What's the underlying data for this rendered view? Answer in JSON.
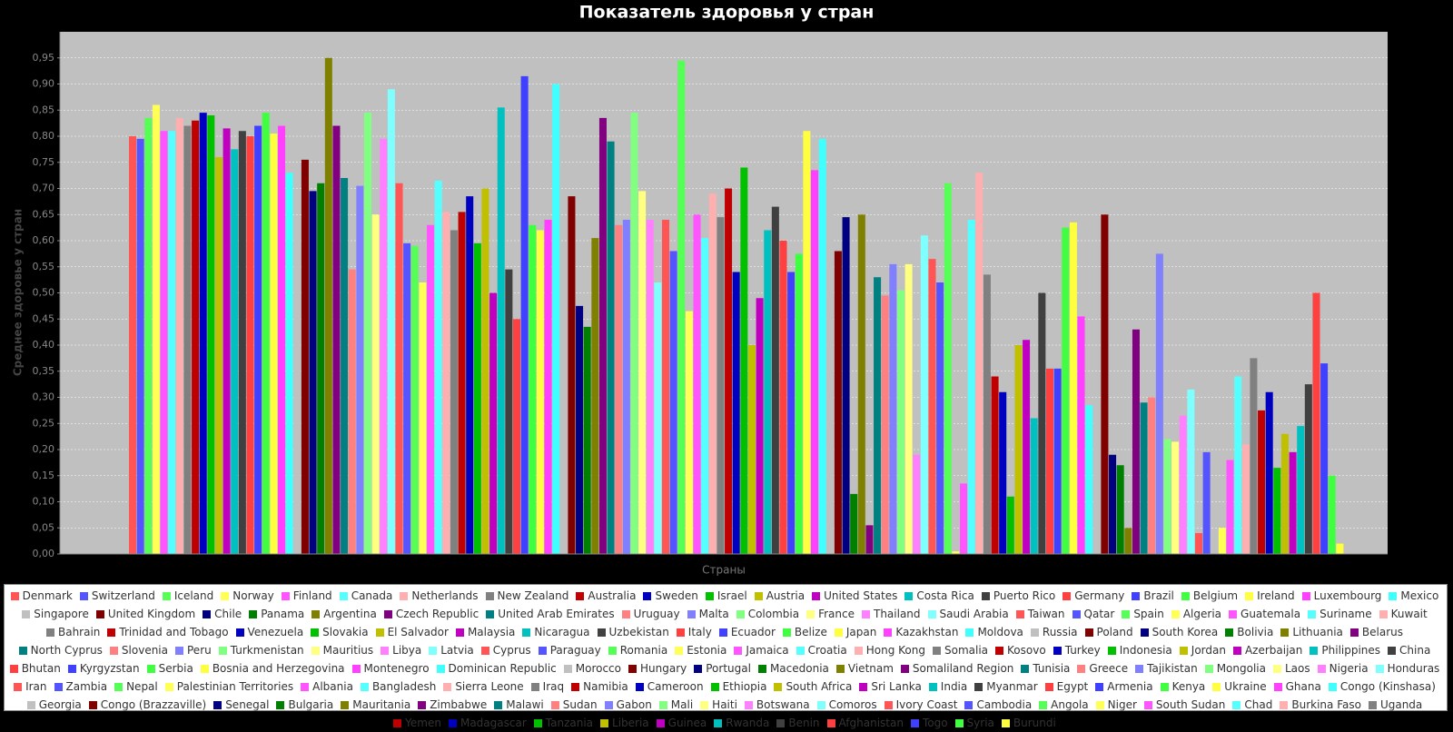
{
  "chart_data": {
    "type": "bar",
    "title": "Показатель здоровья у стран",
    "x_label": "Страны",
    "y_label": "Среднее здоровье у стран",
    "ylim": [
      0,
      1
    ],
    "yticks": [
      {
        "value": 0,
        "label": "0,00"
      },
      {
        "value": 0.05,
        "label": "0,05"
      },
      {
        "value": 0.1,
        "label": "0,10"
      },
      {
        "value": 0.15,
        "label": "0,15"
      },
      {
        "value": 0.2,
        "label": "0,20"
      },
      {
        "value": 0.25,
        "label": "0,25"
      },
      {
        "value": 0.3,
        "label": "0,30"
      },
      {
        "value": 0.35,
        "label": "0,35"
      },
      {
        "value": 0.4,
        "label": "0,40"
      },
      {
        "value": 0.45,
        "label": "0,45"
      },
      {
        "value": 0.5,
        "label": "0,50"
      },
      {
        "value": 0.55,
        "label": "0,55"
      },
      {
        "value": 0.6,
        "label": "0,60"
      },
      {
        "value": 0.65,
        "label": "0,65"
      },
      {
        "value": 0.7,
        "label": "0,70"
      },
      {
        "value": 0.75,
        "label": "0,75"
      },
      {
        "value": 0.8,
        "label": "0,80"
      },
      {
        "value": 0.85,
        "label": "0,85"
      },
      {
        "value": 0.9,
        "label": "0,90"
      },
      {
        "value": 0.95,
        "label": "0,95"
      }
    ],
    "grid": true,
    "legend": "bottom",
    "palette": [
      "#FF5555",
      "#5555FF",
      "#55FF55",
      "#FFFF55",
      "#FF55FF",
      "#55FFFF",
      "#FFAFAF",
      "#808080",
      "#C00000",
      "#0000C0",
      "#00C000",
      "#C0C000",
      "#C000C0",
      "#00C0C0",
      "#404040",
      "#FF4040",
      "#4040FF",
      "#40FF40",
      "#FFFF40",
      "#FF40FF",
      "#40FFFF",
      "#C0C0C0",
      "#800000",
      "#000080",
      "#008000",
      "#808000",
      "#800080",
      "#008080",
      "#FF8080",
      "#8080FF",
      "#80FF80",
      "#FFFF80",
      "#FF80FF",
      "#80FFFF"
    ],
    "series": [
      {
        "name": "Denmark",
        "values": [
          0.8
        ]
      },
      {
        "name": "Switzerland",
        "values": [
          0.795
        ]
      },
      {
        "name": "Iceland",
        "values": [
          0.835
        ]
      },
      {
        "name": "Norway",
        "values": [
          0.86
        ]
      },
      {
        "name": "Finland",
        "values": [
          0.81
        ]
      },
      {
        "name": "Canada",
        "values": [
          0.81
        ]
      },
      {
        "name": "Netherlands",
        "values": [
          0.835
        ]
      },
      {
        "name": "New Zealand",
        "values": [
          0.82
        ]
      },
      {
        "name": "Australia",
        "values": [
          0.83
        ]
      },
      {
        "name": "Sweden",
        "values": [
          0.845
        ]
      },
      {
        "name": "Israel",
        "values": [
          0.84
        ]
      },
      {
        "name": "Austria",
        "values": [
          0.76
        ]
      },
      {
        "name": "United States",
        "values": [
          0.815
        ]
      },
      {
        "name": "Costa Rica",
        "values": [
          0.775
        ]
      },
      {
        "name": "Puerto Rico",
        "values": [
          0.81
        ]
      },
      {
        "name": "Germany",
        "values": [
          0.8
        ]
      },
      {
        "name": "Brazil",
        "values": [
          0.82
        ]
      },
      {
        "name": "Belgium",
        "values": [
          0.845
        ]
      },
      {
        "name": "Ireland",
        "values": [
          0.805
        ]
      },
      {
        "name": "Luxembourg",
        "values": [
          0.82
        ]
      },
      {
        "name": "Mexico",
        "values": [
          0.73
        ]
      },
      {
        "name": "Singapore",
        "values": [
          0.62
        ]
      },
      {
        "name": "United Kingdom",
        "values": [
          0.755
        ]
      },
      {
        "name": "Chile",
        "values": [
          0.695
        ]
      },
      {
        "name": "Panama",
        "values": [
          0.71
        ]
      },
      {
        "name": "Argentina",
        "values": [
          0.95
        ]
      },
      {
        "name": "Czech Republic",
        "values": [
          0.82
        ]
      },
      {
        "name": "United Arab Emirates",
        "values": [
          0.72
        ]
      },
      {
        "name": "Uruguay",
        "values": [
          0.545
        ]
      },
      {
        "name": "Malta",
        "values": [
          0.705
        ]
      },
      {
        "name": "Colombia",
        "values": [
          0.845
        ]
      },
      {
        "name": "France",
        "values": [
          0.65
        ]
      },
      {
        "name": "Thailand",
        "values": [
          0.795
        ]
      },
      {
        "name": "Saudi Arabia",
        "values": [
          0.89
        ]
      },
      {
        "name": "Taiwan",
        "values": [
          0.71
        ]
      },
      {
        "name": "Qatar",
        "values": [
          0.595
        ]
      },
      {
        "name": "Spain",
        "values": [
          0.59
        ]
      },
      {
        "name": "Algeria",
        "values": [
          0.52
        ]
      },
      {
        "name": "Guatemala",
        "values": [
          0.63
        ]
      },
      {
        "name": "Suriname",
        "values": [
          0.715
        ]
      },
      {
        "name": "Kuwait",
        "values": [
          0.655
        ]
      },
      {
        "name": "Bahrain",
        "values": [
          0.62
        ]
      },
      {
        "name": "Trinidad and Tobago",
        "values": [
          0.655
        ]
      },
      {
        "name": "Venezuela",
        "values": [
          0.685
        ]
      },
      {
        "name": "Slovakia",
        "values": [
          0.595
        ]
      },
      {
        "name": "El Salvador",
        "values": [
          0.7
        ]
      },
      {
        "name": "Malaysia",
        "values": [
          0.5
        ]
      },
      {
        "name": "Nicaragua",
        "values": [
          0.855
        ]
      },
      {
        "name": "Uzbekistan",
        "values": [
          0.545
        ]
      },
      {
        "name": "Italy",
        "values": [
          0.45
        ]
      },
      {
        "name": "Ecuador",
        "values": [
          0.915
        ]
      },
      {
        "name": "Belize",
        "values": [
          0.63
        ]
      },
      {
        "name": "Japan",
        "values": [
          0.62
        ]
      },
      {
        "name": "Kazakhstan",
        "values": [
          0.64
        ]
      },
      {
        "name": "Moldova",
        "values": [
          0.9
        ]
      },
      {
        "name": "Russia",
        "values": [
          0.59
        ]
      },
      {
        "name": "Poland",
        "values": [
          0.685
        ]
      },
      {
        "name": "South Korea",
        "values": [
          0.475
        ]
      },
      {
        "name": "Bolivia",
        "values": [
          0.435
        ]
      },
      {
        "name": "Lithuania",
        "values": [
          0.605
        ]
      },
      {
        "name": "Belarus",
        "values": [
          0.835
        ]
      },
      {
        "name": "North Cyprus",
        "values": [
          0.79
        ]
      },
      {
        "name": "Slovenia",
        "values": [
          0.63
        ]
      },
      {
        "name": "Peru",
        "values": [
          0.64
        ]
      },
      {
        "name": "Turkmenistan",
        "values": [
          0.845
        ]
      },
      {
        "name": "Mauritius",
        "values": [
          0.695
        ]
      },
      {
        "name": "Libya",
        "values": [
          0.64
        ]
      },
      {
        "name": "Latvia",
        "values": [
          0.52
        ]
      },
      {
        "name": "Cyprus",
        "values": [
          0.64
        ]
      },
      {
        "name": "Paraguay",
        "values": [
          0.58
        ]
      },
      {
        "name": "Romania",
        "values": [
          0.945
        ]
      },
      {
        "name": "Estonia",
        "values": [
          0.465
        ]
      },
      {
        "name": "Jamaica",
        "values": [
          0.65
        ]
      },
      {
        "name": "Croatia",
        "values": [
          0.605
        ]
      },
      {
        "name": "Hong Kong",
        "values": [
          0.69
        ]
      },
      {
        "name": "Somalia",
        "values": [
          0.645
        ]
      },
      {
        "name": "Kosovo",
        "values": [
          0.7
        ]
      },
      {
        "name": "Turkey",
        "values": [
          0.54
        ]
      },
      {
        "name": "Indonesia",
        "values": [
          0.74
        ]
      },
      {
        "name": "Jordan",
        "values": [
          0.4
        ]
      },
      {
        "name": "Azerbaijan",
        "values": [
          0.49
        ]
      },
      {
        "name": "Philippines",
        "values": [
          0.62
        ]
      },
      {
        "name": "China",
        "values": [
          0.665
        ]
      },
      {
        "name": "Bhutan",
        "values": [
          0.6
        ]
      },
      {
        "name": "Kyrgyzstan",
        "values": [
          0.54
        ]
      },
      {
        "name": "Serbia",
        "values": [
          0.575
        ]
      },
      {
        "name": "Bosnia and Herzegovina",
        "values": [
          0.81
        ]
      },
      {
        "name": "Montenegro",
        "values": [
          0.735
        ]
      },
      {
        "name": "Dominican Republic",
        "values": [
          0.795
        ]
      },
      {
        "name": "Morocco",
        "values": [
          0.705
        ]
      },
      {
        "name": "Hungary",
        "values": [
          0.58
        ]
      },
      {
        "name": "Portugal",
        "values": [
          0.645
        ]
      },
      {
        "name": "Macedonia",
        "values": [
          0.115
        ]
      },
      {
        "name": "Vietnam",
        "values": [
          0.65
        ]
      },
      {
        "name": "Somaliland Region",
        "values": [
          0.055
        ]
      },
      {
        "name": "Tunisia",
        "values": [
          0.53
        ]
      },
      {
        "name": "Greece",
        "values": [
          0.495
        ]
      },
      {
        "name": "Tajikistan",
        "values": [
          0.555
        ]
      },
      {
        "name": "Mongolia",
        "values": [
          0.505
        ]
      },
      {
        "name": "Laos",
        "values": [
          0.555
        ]
      },
      {
        "name": "Nigeria",
        "values": [
          0.19
        ]
      },
      {
        "name": "Honduras",
        "values": [
          0.61
        ]
      },
      {
        "name": "Iran",
        "values": [
          0.565
        ]
      },
      {
        "name": "Zambia",
        "values": [
          0.52
        ]
      },
      {
        "name": "Nepal",
        "values": [
          0.71
        ]
      },
      {
        "name": "Palestinian Territories",
        "values": [
          0.005
        ]
      },
      {
        "name": "Albania",
        "values": [
          0.135
        ]
      },
      {
        "name": "Bangladesh",
        "values": [
          0.64
        ]
      },
      {
        "name": "Sierra Leone",
        "values": [
          0.73
        ]
      },
      {
        "name": "Iraq",
        "values": [
          0.535
        ]
      },
      {
        "name": "Namibia",
        "values": [
          0.34
        ]
      },
      {
        "name": "Cameroon",
        "values": [
          0.31
        ]
      },
      {
        "name": "Ethiopia",
        "values": [
          0.11
        ]
      },
      {
        "name": "South Africa",
        "values": [
          0.4
        ]
      },
      {
        "name": "Sri Lanka",
        "values": [
          0.41
        ]
      },
      {
        "name": "India",
        "values": [
          0.26
        ]
      },
      {
        "name": "Myanmar",
        "values": [
          0.5
        ]
      },
      {
        "name": "Egypt",
        "values": [
          0.355
        ]
      },
      {
        "name": "Armenia",
        "values": [
          0.355
        ]
      },
      {
        "name": "Kenya",
        "values": [
          0.625
        ]
      },
      {
        "name": "Ukraine",
        "values": [
          0.635
        ]
      },
      {
        "name": "Ghana",
        "values": [
          0.455
        ]
      },
      {
        "name": "Congo (Kinshasa)",
        "values": [
          0.285
        ]
      },
      {
        "name": "Georgia",
        "values": [
          0.29
        ]
      },
      {
        "name": "Congo (Brazzaville)",
        "values": [
          0.65
        ]
      },
      {
        "name": "Senegal",
        "values": [
          0.19
        ]
      },
      {
        "name": "Bulgaria",
        "values": [
          0.17
        ]
      },
      {
        "name": "Mauritania",
        "values": [
          0.05
        ]
      },
      {
        "name": "Zimbabwe",
        "values": [
          0.43
        ]
      },
      {
        "name": "Malawi",
        "values": [
          0.29
        ]
      },
      {
        "name": "Sudan",
        "values": [
          0.3
        ]
      },
      {
        "name": "Gabon",
        "values": [
          0.575
        ]
      },
      {
        "name": "Mali",
        "values": [
          0.22
        ]
      },
      {
        "name": "Haiti",
        "values": [
          0.215
        ]
      },
      {
        "name": "Botswana",
        "values": [
          0.265
        ]
      },
      {
        "name": "Comoros",
        "values": [
          0.315
        ]
      },
      {
        "name": "Ivory Coast",
        "values": [
          0.04
        ]
      },
      {
        "name": "Cambodia",
        "values": [
          0.195
        ]
      },
      {
        "name": "Angola",
        "values": [
          0
        ]
      },
      {
        "name": "Niger",
        "values": [
          0.05
        ]
      },
      {
        "name": "South Sudan",
        "values": [
          0.18
        ]
      },
      {
        "name": "Chad",
        "values": [
          0.34
        ]
      },
      {
        "name": "Burkina Faso",
        "values": [
          0.21
        ]
      },
      {
        "name": "Uganda",
        "values": [
          0.375
        ]
      },
      {
        "name": "Yemen",
        "values": [
          0.275
        ]
      },
      {
        "name": "Madagascar",
        "values": [
          0.31
        ]
      },
      {
        "name": "Tanzania",
        "values": [
          0.165
        ]
      },
      {
        "name": "Liberia",
        "values": [
          0.23
        ]
      },
      {
        "name": "Guinea",
        "values": [
          0.195
        ]
      },
      {
        "name": "Rwanda",
        "values": [
          0.245
        ]
      },
      {
        "name": "Benin",
        "values": [
          0.325
        ]
      },
      {
        "name": "Afghanistan",
        "values": [
          0.5
        ]
      },
      {
        "name": "Togo",
        "values": [
          0.365
        ]
      },
      {
        "name": "Syria",
        "values": [
          0.15
        ]
      },
      {
        "name": "Burundi",
        "values": [
          0.02
        ]
      }
    ]
  }
}
